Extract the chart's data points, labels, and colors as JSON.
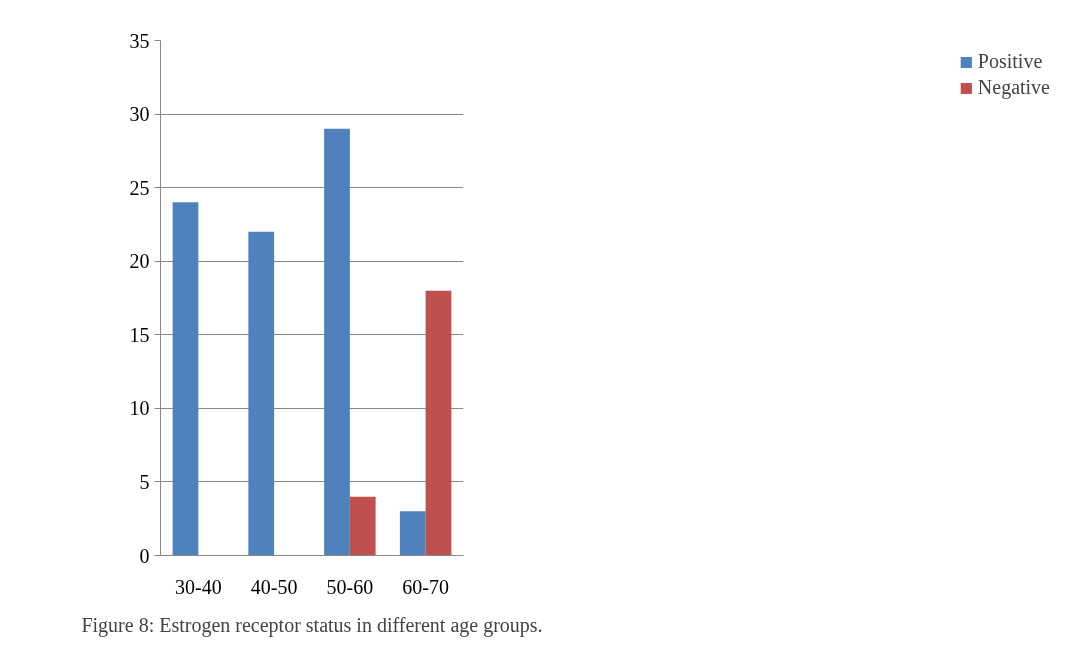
{
  "chart_data": {
    "type": "bar",
    "categories": [
      "30-40",
      "40-50",
      "50-60",
      "60-70"
    ],
    "series": [
      {
        "name": "Positive",
        "color": "#4f81bd",
        "values": [
          24,
          22,
          29,
          3
        ]
      },
      {
        "name": "Negative",
        "color": "#c0504d",
        "values": [
          0,
          0,
          4,
          18
        ]
      }
    ],
    "ylim": [
      0,
      35
    ],
    "yticks": [
      0,
      5,
      10,
      15,
      20,
      25,
      30,
      35
    ],
    "grid": "y",
    "legend": "right",
    "annotations": [
      "Figure 8: Estrogen receptor status in different age groups."
    ]
  }
}
